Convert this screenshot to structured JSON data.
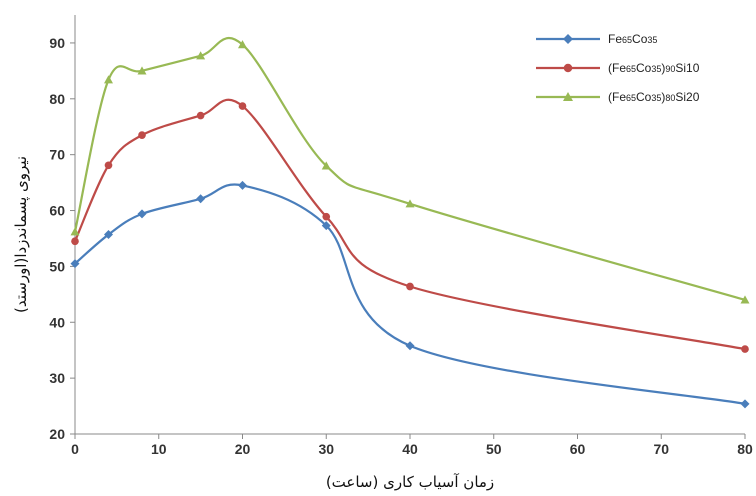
{
  "chart_data": {
    "type": "line",
    "xlabel": "زمان آسیاب کاری (ساعت)",
    "ylabel": "نیروی پسماندزدا(اورستد)",
    "xlim": [
      0,
      80
    ],
    "ylim": [
      20,
      95
    ],
    "x_ticks": [
      "0",
      "10",
      "20",
      "30",
      "40",
      "50",
      "60",
      "70",
      "80"
    ],
    "y_ticks": [
      "20",
      "30",
      "40",
      "50",
      "60",
      "70",
      "80",
      "90"
    ],
    "grid": false,
    "legend_position": "top-right",
    "series": [
      {
        "name": "Fe65Co35",
        "legend": {
          "base": "Fe",
          "s1": "65",
          "mid": "Co",
          "s2": "35",
          "end": "",
          "s3": "",
          "tail": ""
        },
        "color": "#4a7ebb",
        "marker": "diamond",
        "x": [
          0,
          4,
          8,
          15,
          20,
          30,
          40,
          80
        ],
        "y": [
          50.5,
          55.7,
          59.4,
          62.1,
          64.5,
          57.3,
          35.8,
          25.4
        ]
      },
      {
        "name": "(Fe65Co35)90Si10",
        "legend": {
          "base": "(Fe",
          "s1": "65",
          "mid": "Co",
          "s2": "35",
          "end": ")",
          "s3": "90",
          "tail": "Si10"
        },
        "color": "#be4b48",
        "marker": "circle",
        "x": [
          0,
          4,
          8,
          15,
          20,
          30,
          40,
          80
        ],
        "y": [
          54.5,
          68.1,
          73.5,
          77.0,
          78.7,
          58.9,
          46.4,
          35.2
        ]
      },
      {
        "name": "(Fe65Co35)80Si20",
        "legend": {
          "base": "(Fe",
          "s1": "65",
          "mid": "Co",
          "s2": "35",
          "end": ")",
          "s3": "80",
          "tail": "Si20"
        },
        "color": "#98b954",
        "marker": "triangle",
        "x": [
          0,
          4,
          8,
          15,
          20,
          30,
          40,
          80
        ],
        "y": [
          56.2,
          83.4,
          85.0,
          87.7,
          89.7,
          68.0,
          61.2,
          44.0
        ]
      }
    ]
  }
}
